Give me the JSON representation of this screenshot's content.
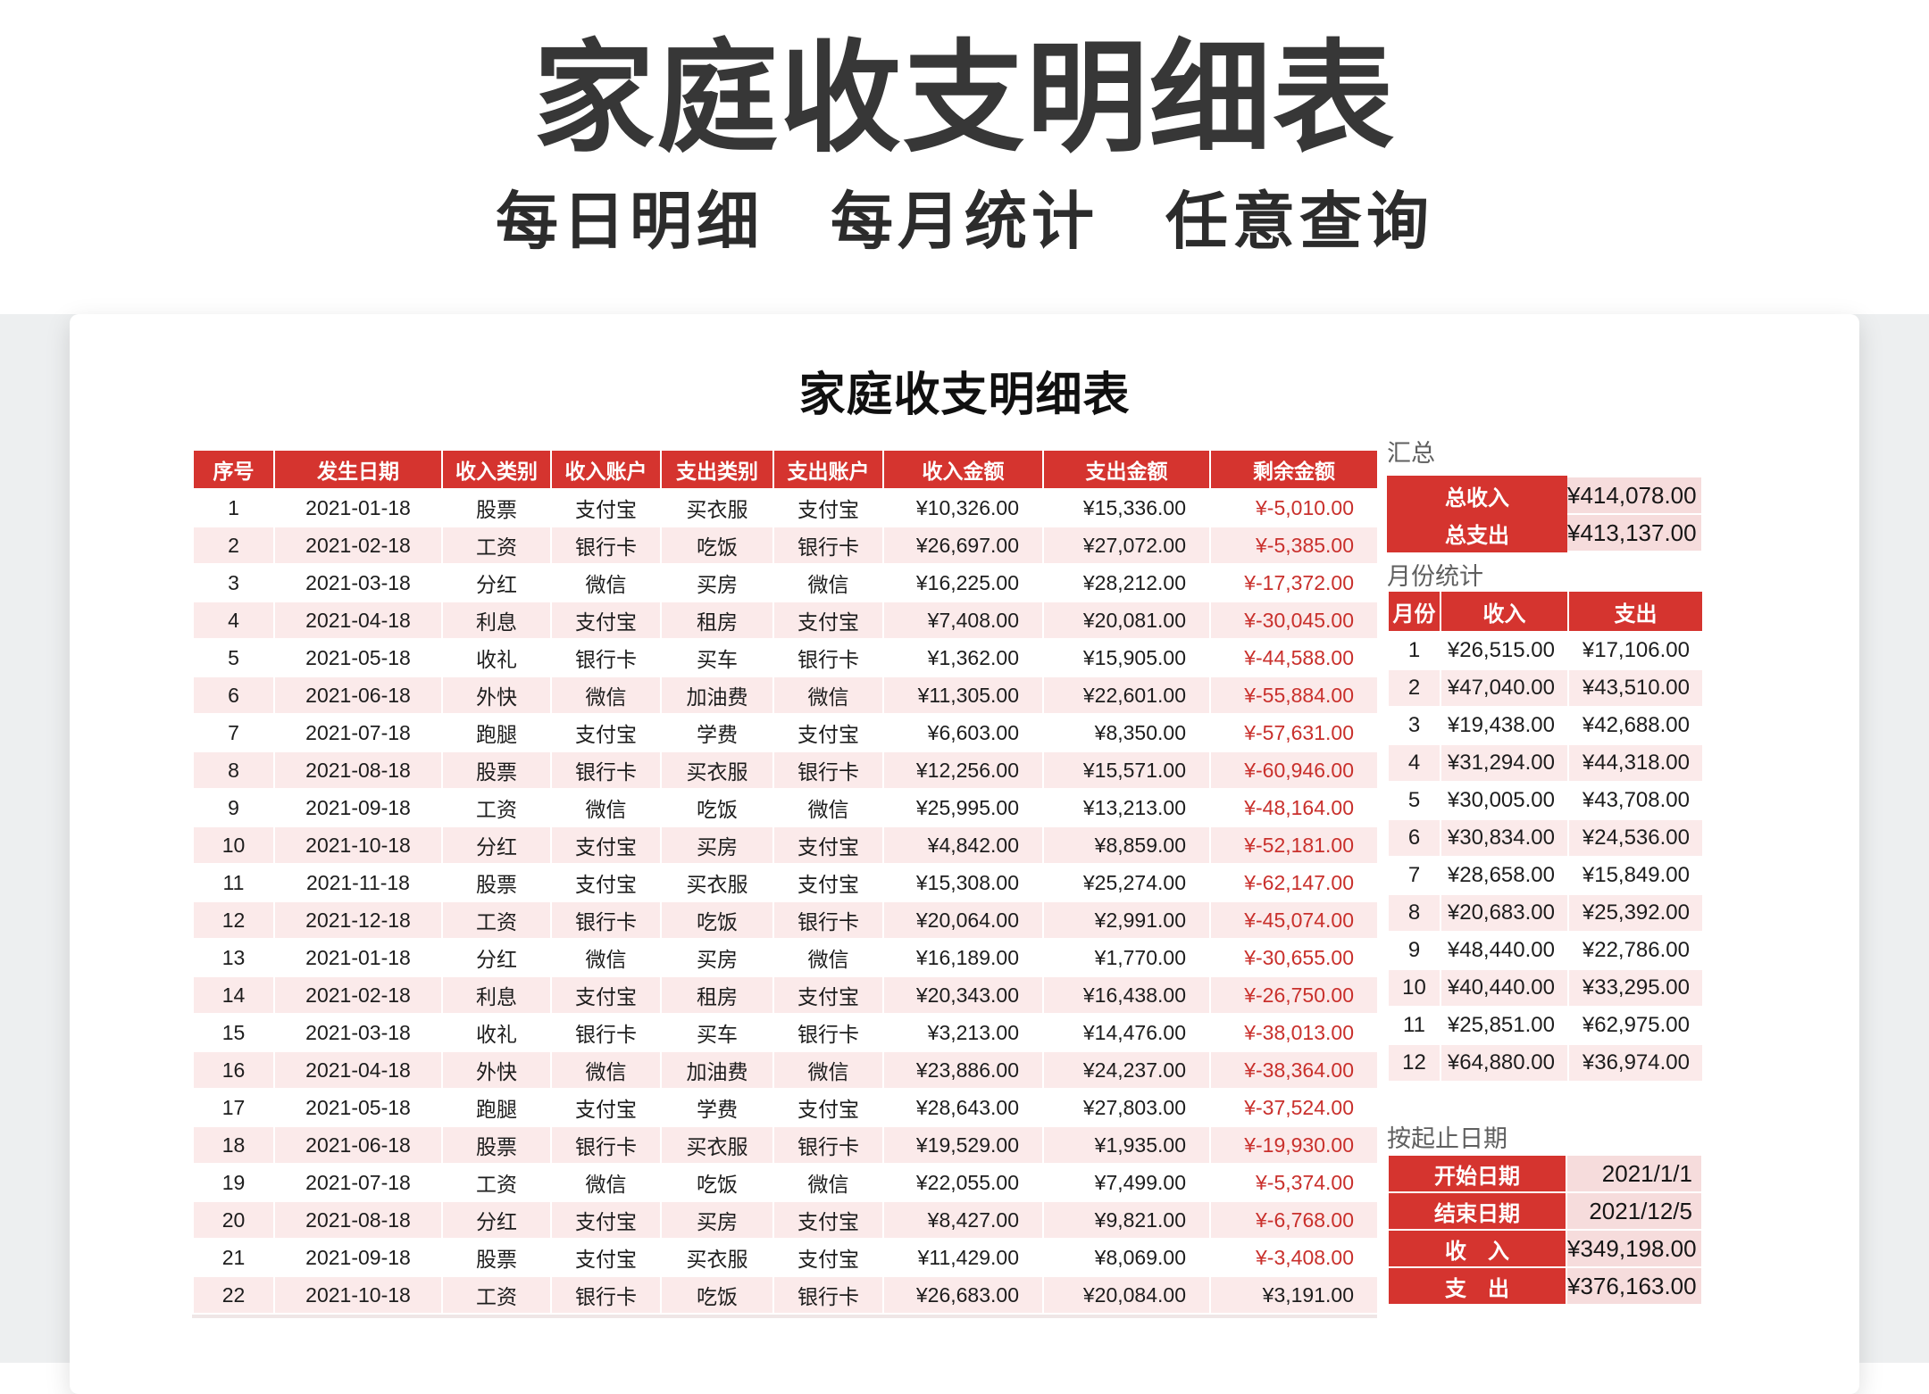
{
  "page": {
    "title": "家庭收支明细表",
    "subtitle": "每日明细　每月统计　任意查询",
    "card_title": "家庭收支明细表"
  },
  "colors": {
    "accent_red": "#d5342f",
    "row_pink": "#fbeaea",
    "value_pink": "#f6dcdc",
    "negative_text": "#c9302c"
  },
  "main_table": {
    "headers": [
      "序号",
      "发生日期",
      "收入类别",
      "收入账户",
      "支出类别",
      "支出账户",
      "收入金额",
      "支出金额",
      "剩余金额"
    ],
    "rows": [
      [
        "1",
        "2021-01-18",
        "股票",
        "支付宝",
        "买衣服",
        "支付宝",
        "¥10,326.00",
        "¥15,336.00",
        "¥-5,010.00"
      ],
      [
        "2",
        "2021-02-18",
        "工资",
        "银行卡",
        "吃饭",
        "银行卡",
        "¥26,697.00",
        "¥27,072.00",
        "¥-5,385.00"
      ],
      [
        "3",
        "2021-03-18",
        "分红",
        "微信",
        "买房",
        "微信",
        "¥16,225.00",
        "¥28,212.00",
        "¥-17,372.00"
      ],
      [
        "4",
        "2021-04-18",
        "利息",
        "支付宝",
        "租房",
        "支付宝",
        "¥7,408.00",
        "¥20,081.00",
        "¥-30,045.00"
      ],
      [
        "5",
        "2021-05-18",
        "收礼",
        "银行卡",
        "买车",
        "银行卡",
        "¥1,362.00",
        "¥15,905.00",
        "¥-44,588.00"
      ],
      [
        "6",
        "2021-06-18",
        "外快",
        "微信",
        "加油费",
        "微信",
        "¥11,305.00",
        "¥22,601.00",
        "¥-55,884.00"
      ],
      [
        "7",
        "2021-07-18",
        "跑腿",
        "支付宝",
        "学费",
        "支付宝",
        "¥6,603.00",
        "¥8,350.00",
        "¥-57,631.00"
      ],
      [
        "8",
        "2021-08-18",
        "股票",
        "银行卡",
        "买衣服",
        "银行卡",
        "¥12,256.00",
        "¥15,571.00",
        "¥-60,946.00"
      ],
      [
        "9",
        "2021-09-18",
        "工资",
        "微信",
        "吃饭",
        "微信",
        "¥25,995.00",
        "¥13,213.00",
        "¥-48,164.00"
      ],
      [
        "10",
        "2021-10-18",
        "分红",
        "支付宝",
        "买房",
        "支付宝",
        "¥4,842.00",
        "¥8,859.00",
        "¥-52,181.00"
      ],
      [
        "11",
        "2021-11-18",
        "股票",
        "支付宝",
        "买衣服",
        "支付宝",
        "¥15,308.00",
        "¥25,274.00",
        "¥-62,147.00"
      ],
      [
        "12",
        "2021-12-18",
        "工资",
        "银行卡",
        "吃饭",
        "银行卡",
        "¥20,064.00",
        "¥2,991.00",
        "¥-45,074.00"
      ],
      [
        "13",
        "2021-01-18",
        "分红",
        "微信",
        "买房",
        "微信",
        "¥16,189.00",
        "¥1,770.00",
        "¥-30,655.00"
      ],
      [
        "14",
        "2021-02-18",
        "利息",
        "支付宝",
        "租房",
        "支付宝",
        "¥20,343.00",
        "¥16,438.00",
        "¥-26,750.00"
      ],
      [
        "15",
        "2021-03-18",
        "收礼",
        "银行卡",
        "买车",
        "银行卡",
        "¥3,213.00",
        "¥14,476.00",
        "¥-38,013.00"
      ],
      [
        "16",
        "2021-04-18",
        "外快",
        "微信",
        "加油费",
        "微信",
        "¥23,886.00",
        "¥24,237.00",
        "¥-38,364.00"
      ],
      [
        "17",
        "2021-05-18",
        "跑腿",
        "支付宝",
        "学费",
        "支付宝",
        "¥28,643.00",
        "¥27,803.00",
        "¥-37,524.00"
      ],
      [
        "18",
        "2021-06-18",
        "股票",
        "银行卡",
        "买衣服",
        "银行卡",
        "¥19,529.00",
        "¥1,935.00",
        "¥-19,930.00"
      ],
      [
        "19",
        "2021-07-18",
        "工资",
        "微信",
        "吃饭",
        "微信",
        "¥22,055.00",
        "¥7,499.00",
        "¥-5,374.00"
      ],
      [
        "20",
        "2021-08-18",
        "分红",
        "支付宝",
        "买房",
        "支付宝",
        "¥8,427.00",
        "¥9,821.00",
        "¥-6,768.00"
      ],
      [
        "21",
        "2021-09-18",
        "股票",
        "支付宝",
        "买衣服",
        "支付宝",
        "¥11,429.00",
        "¥8,069.00",
        "¥-3,408.00"
      ],
      [
        "22",
        "2021-10-18",
        "工资",
        "银行卡",
        "吃饭",
        "银行卡",
        "¥26,683.00",
        "¥20,084.00",
        "¥3,191.00"
      ]
    ]
  },
  "summary": {
    "label": "汇总",
    "rows": [
      {
        "label": "总收入",
        "value": "¥414,078.00"
      },
      {
        "label": "总支出",
        "value": "¥413,137.00"
      }
    ]
  },
  "monthly": {
    "label": "月份统计",
    "headers": [
      "月份",
      "收入",
      "支出"
    ],
    "rows": [
      [
        "1",
        "¥26,515.00",
        "¥17,106.00"
      ],
      [
        "2",
        "¥47,040.00",
        "¥43,510.00"
      ],
      [
        "3",
        "¥19,438.00",
        "¥42,688.00"
      ],
      [
        "4",
        "¥31,294.00",
        "¥44,318.00"
      ],
      [
        "5",
        "¥30,005.00",
        "¥43,708.00"
      ],
      [
        "6",
        "¥30,834.00",
        "¥24,536.00"
      ],
      [
        "7",
        "¥28,658.00",
        "¥15,849.00"
      ],
      [
        "8",
        "¥20,683.00",
        "¥25,392.00"
      ],
      [
        "9",
        "¥48,440.00",
        "¥22,786.00"
      ],
      [
        "10",
        "¥40,440.00",
        "¥33,295.00"
      ],
      [
        "11",
        "¥25,851.00",
        "¥62,975.00"
      ],
      [
        "12",
        "¥64,880.00",
        "¥36,974.00"
      ]
    ]
  },
  "date_range": {
    "label": "按起止日期",
    "rows": [
      {
        "label": "开始日期",
        "value": "2021/1/1"
      },
      {
        "label": "结束日期",
        "value": "2021/12/5"
      },
      {
        "label": "收　入",
        "value": "¥349,198.00"
      },
      {
        "label": "支　出",
        "value": "¥376,163.00"
      }
    ]
  }
}
